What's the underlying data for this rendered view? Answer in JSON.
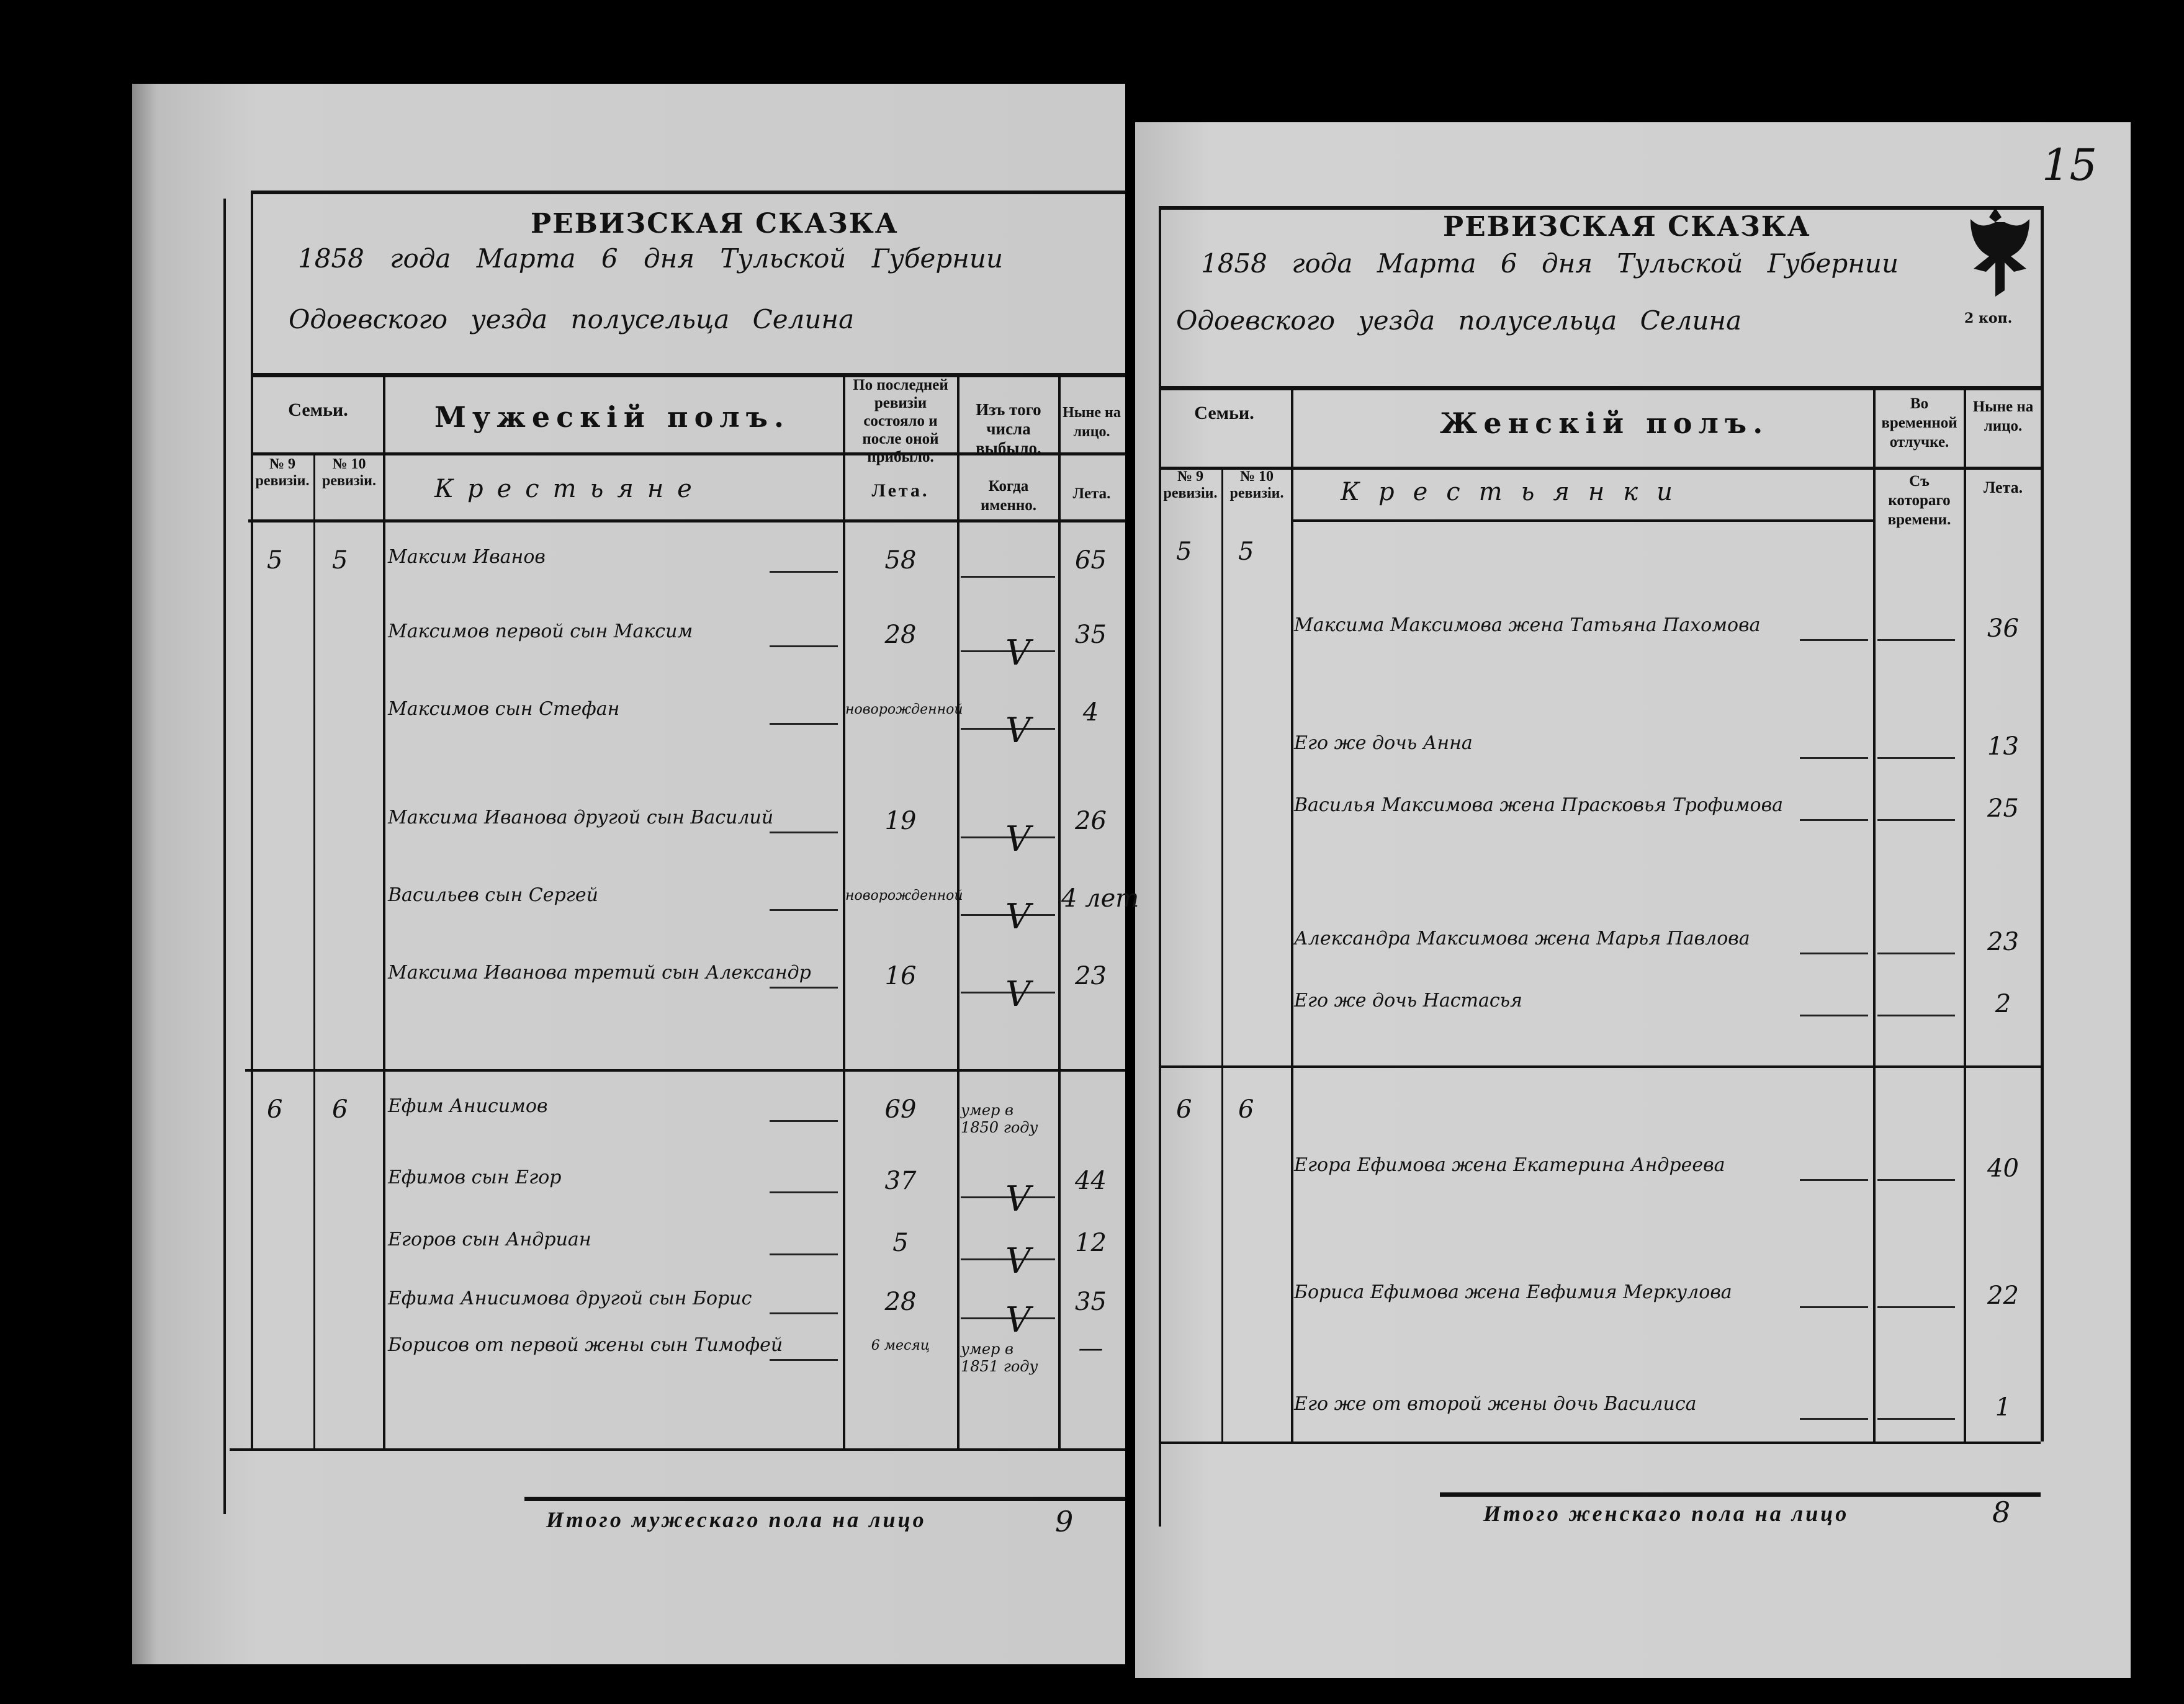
{
  "left_page": {
    "title": "РЕВИЗСКАЯ СКАЗКА",
    "date_line": "1858 года Марта 6 дня Тульской Губернии",
    "place_line": "Одоевского уезда полусельца Селина",
    "headers": {
      "families": "Семьи.",
      "rev9": "№ 9 ревизіи.",
      "rev10": "№ 10 ревизіи.",
      "section": "Мужескій полъ.",
      "last_revision": "По последней ревизіи состояло и после оной прибыло.",
      "departed": "Изъ того числа выбыло.",
      "present": "Ныне на лицо.",
      "estate": "Крестьяне",
      "years": "Лета.",
      "when": "Когда именно.",
      "years2": "Лета."
    },
    "rows": [
      {
        "rev9": "5",
        "rev10": "5",
        "name": "Максим Иванов",
        "last": "58",
        "departed": "",
        "mark": "",
        "present": "65"
      },
      {
        "name": "Максимов первой сын Максим",
        "last": "28",
        "mark": "V",
        "present": "35"
      },
      {
        "name": "Максимов сын Стефан",
        "last": "новорожденной",
        "mark": "V",
        "present": "4"
      },
      {
        "name": "Максима Иванова другой сын Василий",
        "last": "19",
        "mark": "V",
        "present": "26"
      },
      {
        "name": "Васильев сын Сергей",
        "last": "новорожденной",
        "mark": "V",
        "present": "4 лет"
      },
      {
        "name": "Максима Иванова третий сын Александр",
        "last": "16",
        "mark": "V",
        "present": "23"
      },
      {
        "rev9": "6",
        "rev10": "6",
        "name": "Ефим Анисимов",
        "last": "69",
        "departed": "умер в 1850 году",
        "present": ""
      },
      {
        "name": "Ефимов сын Егор",
        "last": "37",
        "mark": "V",
        "present": "44"
      },
      {
        "name": "Егоров сын Андриан",
        "last": "5",
        "mark": "V",
        "present": "12"
      },
      {
        "name": "Ефима Анисимова другой сын Борис",
        "last": "28",
        "mark": "V",
        "present": "35"
      },
      {
        "name": "Борисов от первой жены сын Тимофей",
        "last": "6 месяц",
        "departed": "умер в 1851 году",
        "present": "—"
      }
    ],
    "total_label": "Итого мужескаго пола на лицо",
    "total_value": "9"
  },
  "right_page": {
    "page_number": "15",
    "title": "РЕВИЗСКАЯ СКАЗКА",
    "date_line": "1858 года Марта 6 дня Тульской Губернии",
    "place_line": "Одоевского уезда полусельца Селина",
    "stamp_label": "2 коп.",
    "headers": {
      "families": "Семьи.",
      "rev9": "№ 9 ревизіи.",
      "rev10": "№ 10 ревизіи.",
      "section": "Женскій полъ.",
      "absent": "Во временной отлучке.",
      "present": "Ныне на лицо.",
      "estate": "Крестьянки",
      "since": "Съ котораго времени.",
      "years": "Лета."
    },
    "rows": [
      {
        "rev9": "5",
        "rev10": "5",
        "name": "",
        "present": ""
      },
      {
        "name": "Максима Максимова жена Татьяна Пахомова",
        "present": "36"
      },
      {
        "name": "Его же дочь Анна",
        "present": "13"
      },
      {
        "name": "Василья Максимова жена Прасковья Трофимова",
        "present": "25"
      },
      {
        "name": "Александра Максимова жена Марья Павлова",
        "present": "23"
      },
      {
        "name": "Его же дочь Настасья",
        "present": "2"
      },
      {
        "rev9": "6",
        "rev10": "6",
        "name": "",
        "present": ""
      },
      {
        "name": "Егора Ефимова жена Екатерина Андреева",
        "present": "40"
      },
      {
        "name": "Бориса Ефимова жена Евфимия Меркулова",
        "present": "22"
      },
      {
        "name": "Его же от второй жены дочь Василиса",
        "present": "1"
      }
    ],
    "total_label": "Итого женскаго пола на лицо",
    "total_value": "8"
  }
}
